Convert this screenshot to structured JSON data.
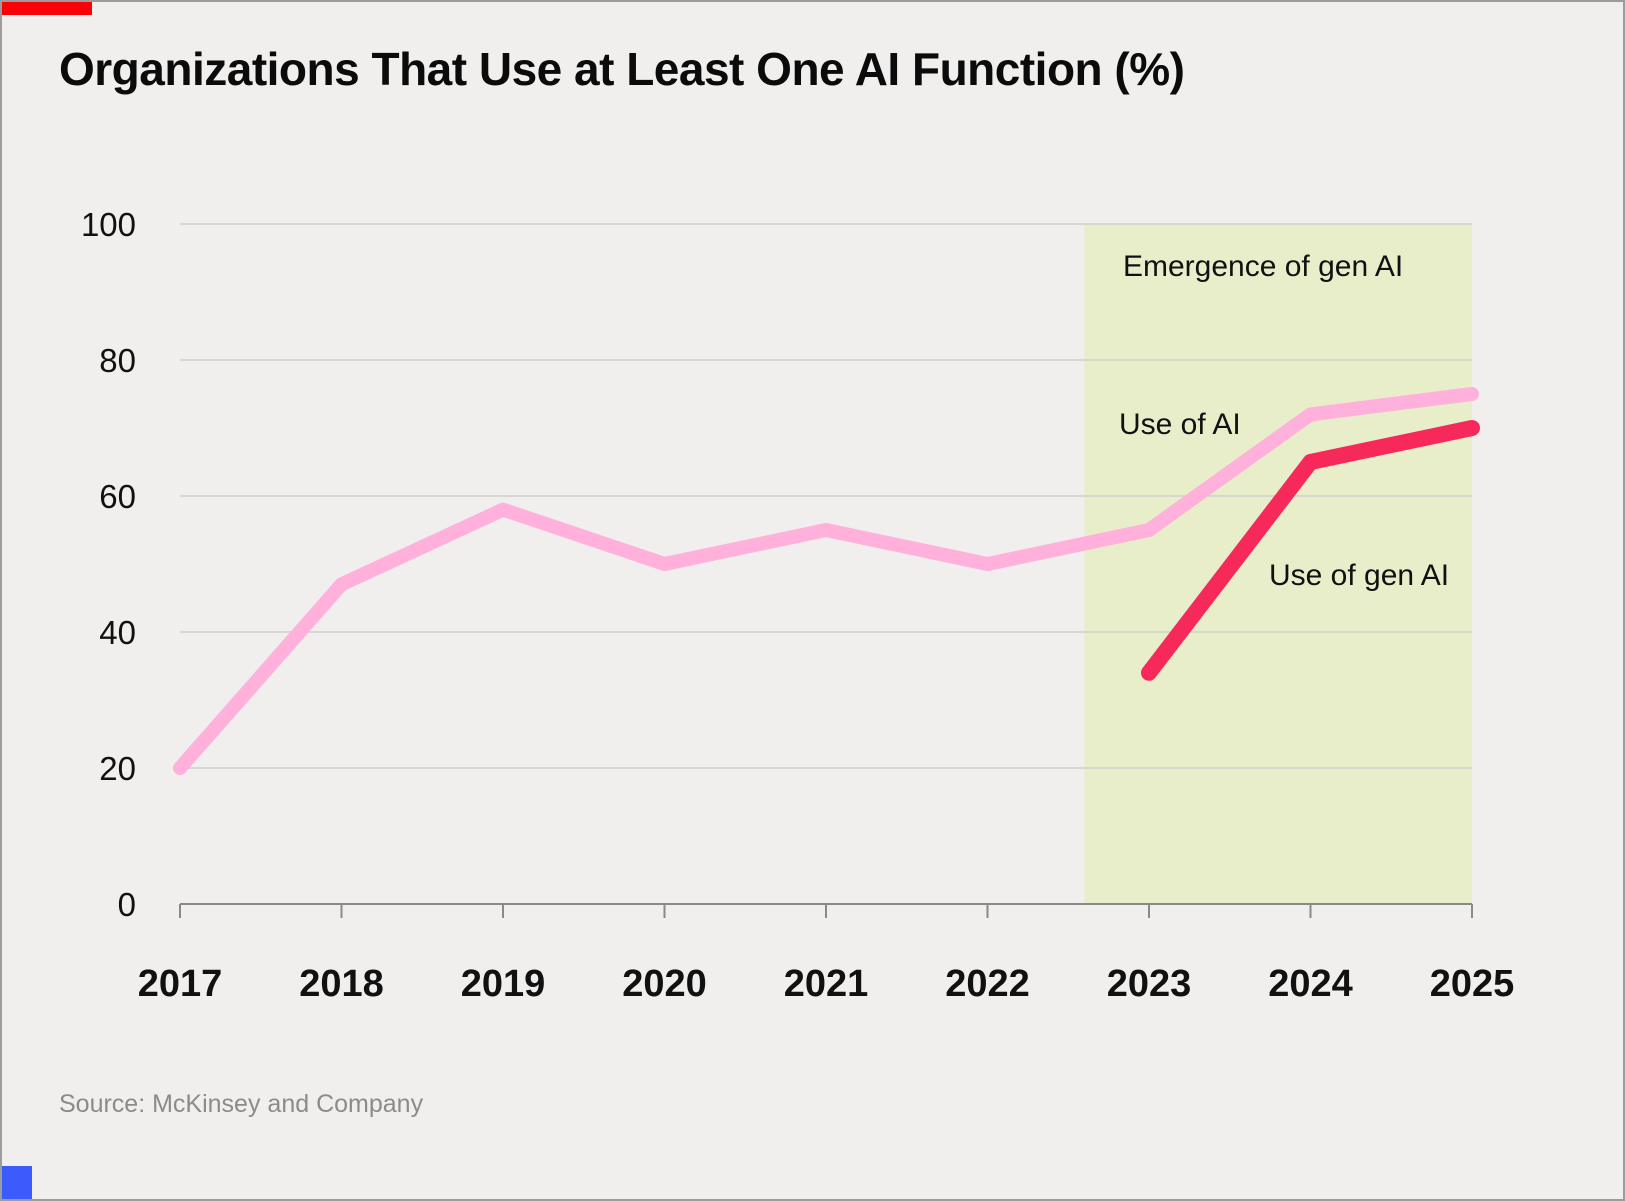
{
  "chart_data": {
    "type": "line",
    "title": "Organizations That Use at Least One AI Function (%)",
    "x": [
      2017,
      2018,
      2019,
      2020,
      2021,
      2022,
      2023,
      2024,
      2025
    ],
    "y_ticks": [
      0,
      20,
      40,
      60,
      80,
      100
    ],
    "ylim": [
      0,
      100
    ],
    "grid": true,
    "legend": "inline-annotations",
    "series": [
      {
        "name": "Use of AI",
        "color": "#FFB1DC",
        "stroke_width": 14,
        "x": [
          2017,
          2018,
          2019,
          2020,
          2021,
          2022,
          2023,
          2024,
          2025
        ],
        "values": [
          20,
          47,
          58,
          50,
          55,
          50,
          55,
          72,
          75
        ]
      },
      {
        "name": "Use of gen AI",
        "color": "#F7295A",
        "stroke_width": 16,
        "x": [
          2023,
          2024,
          2025
        ],
        "values": [
          34,
          65,
          70
        ]
      }
    ],
    "shaded_region": {
      "label": "Emergence of gen AI",
      "x_start": 2022.6,
      "x_end": 2025,
      "color": "#E9EECA"
    },
    "source": "Source: McKinsey and Company"
  },
  "accents": {
    "top_bar": "#FB0006",
    "bottom_square": "#3B5BFD"
  }
}
